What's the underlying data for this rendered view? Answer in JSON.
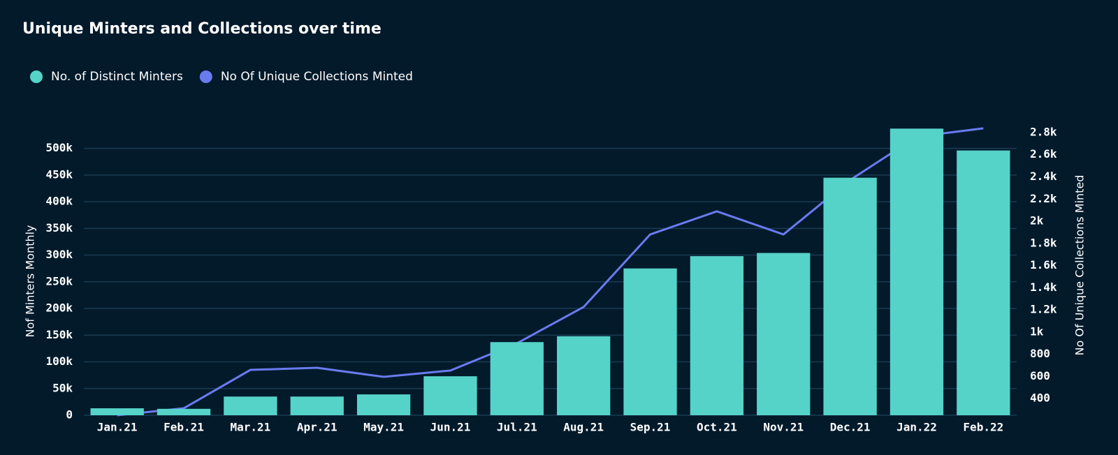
{
  "chart_data": {
    "type": "bar-line",
    "title": "Unique Minters and Collections over time",
    "categories": [
      "Jan.21",
      "Feb.21",
      "Mar.21",
      "Apr.21",
      "May.21",
      "Jun.21",
      "Jul.21",
      "Aug.21",
      "Sep.21",
      "Oct.21",
      "Nov.21",
      "Dec.21",
      "Jan.22",
      "Feb.22"
    ],
    "series": [
      {
        "name": "No. of Distinct Minters",
        "color": "#56d3c9",
        "kind": "bar",
        "values": [
          13000,
          12000,
          35000,
          35000,
          39000,
          73000,
          137000,
          148000,
          275000,
          298000,
          304000,
          445000,
          537000,
          496000
        ]
      },
      {
        "name": "No Of Unique Collections Minted",
        "color": "#6a7bf0",
        "kind": "line",
        "axis": "y2",
        "values": [
          250,
          313,
          659,
          678,
          596,
          653,
          899,
          1226,
          1881,
          2089,
          1881,
          2372,
          2763,
          2838
        ]
      }
    ],
    "ylabel": "Nof Minters Monthly",
    "y2label": "No Of Unique Collections Minted",
    "ylim": [
      0,
      540000
    ],
    "yticks": [
      0,
      {
        "value": 50000,
        "label": "50k"
      },
      {
        "value": 100000,
        "label": "100k"
      },
      {
        "value": 150000,
        "label": "150k"
      },
      {
        "value": 200000,
        "label": "200k"
      },
      {
        "value": 250000,
        "label": "250k"
      },
      {
        "value": 300000,
        "label": "300k"
      },
      {
        "value": 350000,
        "label": "350k"
      },
      {
        "value": 400000,
        "label": "400k"
      },
      {
        "value": 450000,
        "label": "450k"
      },
      {
        "value": 500000,
        "label": "500k"
      }
    ],
    "y2lim": [
      250,
      2850
    ],
    "y2ticks": [
      400,
      600,
      800,
      {
        "value": 1000,
        "label": "1k"
      },
      {
        "value": 1200,
        "label": "1.2k"
      },
      {
        "value": 1400,
        "label": "1.4k"
      },
      {
        "value": 1600,
        "label": "1.6k"
      },
      {
        "value": 1800,
        "label": "1.8k"
      },
      {
        "value": 2000,
        "label": "2k"
      },
      {
        "value": 2200,
        "label": "2.2k"
      },
      {
        "value": 2400,
        "label": "2.4k"
      },
      {
        "value": 2600,
        "label": "2.6k"
      },
      {
        "value": 2800,
        "label": "2.8k"
      }
    ],
    "grid": true
  }
}
